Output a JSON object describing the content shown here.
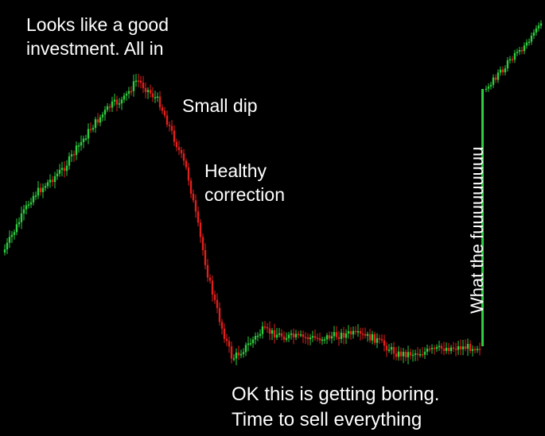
{
  "captions": {
    "all_in_line1": "Looks like a good",
    "all_in_line2": "investment. All in",
    "small_dip": "Small dip",
    "healthy_line1": "Healthy",
    "healthy_line2": "correction",
    "what_the": "What the fuuuuuuuuu",
    "boring_line1": "OK this is getting boring.",
    "boring_line2": "Time to sell everything"
  },
  "colors": {
    "background": "#000000",
    "up": "#2ecc40",
    "down": "#e0201c",
    "text": "#ffffff"
  }
}
